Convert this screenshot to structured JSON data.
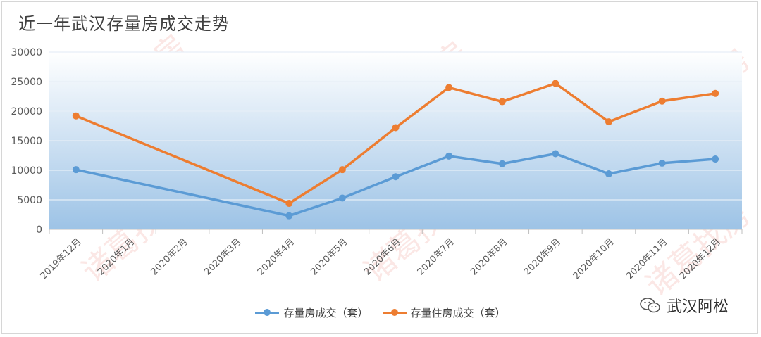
{
  "chart_data": {
    "type": "line",
    "title": "近一年武汉存量房成交走势",
    "categories": [
      "2019年12月",
      "2020年1月",
      "2020年2月",
      "2020年3月",
      "2020年4月",
      "2020年5月",
      "2020年6月",
      "2020年7月",
      "2020年8月",
      "2020年9月",
      "2020年10月",
      "2020年11月",
      "2020年12月"
    ],
    "series": [
      {
        "name": "存量房成交（套）",
        "color": "#5b9bd5",
        "values": [
          10100,
          null,
          null,
          null,
          2300,
          5300,
          8900,
          12400,
          11100,
          12800,
          9400,
          11200,
          11900
        ]
      },
      {
        "name": "存量住房成交（套）",
        "color": "#ed7d31",
        "values": [
          19200,
          null,
          null,
          null,
          4400,
          10100,
          17200,
          24000,
          21600,
          24700,
          18200,
          21700,
          23000
        ]
      }
    ],
    "ylim": [
      0,
      30000
    ],
    "yticks": [
      0,
      5000,
      10000,
      15000,
      20000,
      25000,
      30000
    ],
    "grid": true,
    "legend": "bottom"
  },
  "watermark": "诸葛找房",
  "brand": "武汉阿松"
}
